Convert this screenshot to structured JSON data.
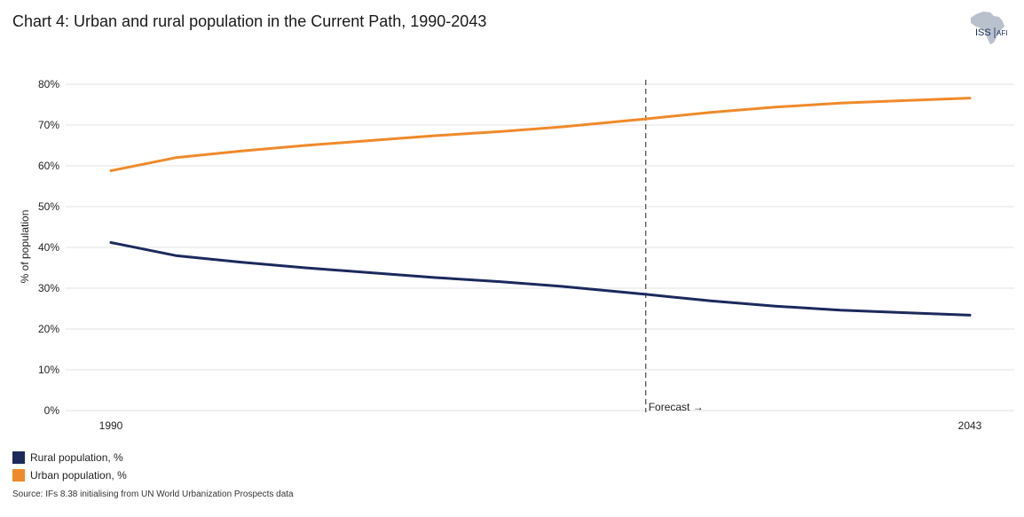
{
  "title": "Chart 4: Urban and rural population in the Current Path, 1990-2043",
  "logo": {
    "text_main": "ISS",
    "text_sub": "AFI",
    "icon": "africa-map-icon"
  },
  "source": "Source: IFs 8.38 initialising from UN World Urbanization Prospects data",
  "forecast_label": "Forecast →",
  "legend": [
    {
      "label": "Rural population, %",
      "color": "#1b2a5c"
    },
    {
      "label": "Urban population, %",
      "color": "#ef8a2a"
    }
  ],
  "chart_data": {
    "type": "line",
    "ylabel": "% of population",
    "xlabel": "",
    "x_tick_labels": [
      "1990",
      "2043"
    ],
    "y_ticks": [
      "0%",
      "10%",
      "20%",
      "30%",
      "40%",
      "50%",
      "60%",
      "70%",
      "80%"
    ],
    "xlim": [
      1990,
      2043
    ],
    "ylim": [
      0,
      80
    ],
    "forecast_start": 2023,
    "grid": true,
    "x": [
      1990,
      1994,
      1998,
      2002,
      2006,
      2010,
      2014,
      2018,
      2023,
      2027,
      2031,
      2035,
      2039,
      2043
    ],
    "series": [
      {
        "name": "Rural population, %",
        "color": "#1b2a5c",
        "values": [
          41.2,
          38.0,
          36.4,
          35.0,
          33.8,
          32.6,
          31.6,
          30.4,
          28.5,
          26.9,
          25.6,
          24.6,
          24.0,
          23.4
        ]
      },
      {
        "name": "Urban population, %",
        "color": "#ef8a2a",
        "values": [
          58.8,
          62.0,
          63.6,
          65.0,
          66.2,
          67.4,
          68.4,
          69.6,
          71.5,
          73.1,
          74.4,
          75.4,
          76.0,
          76.6
        ]
      }
    ]
  }
}
